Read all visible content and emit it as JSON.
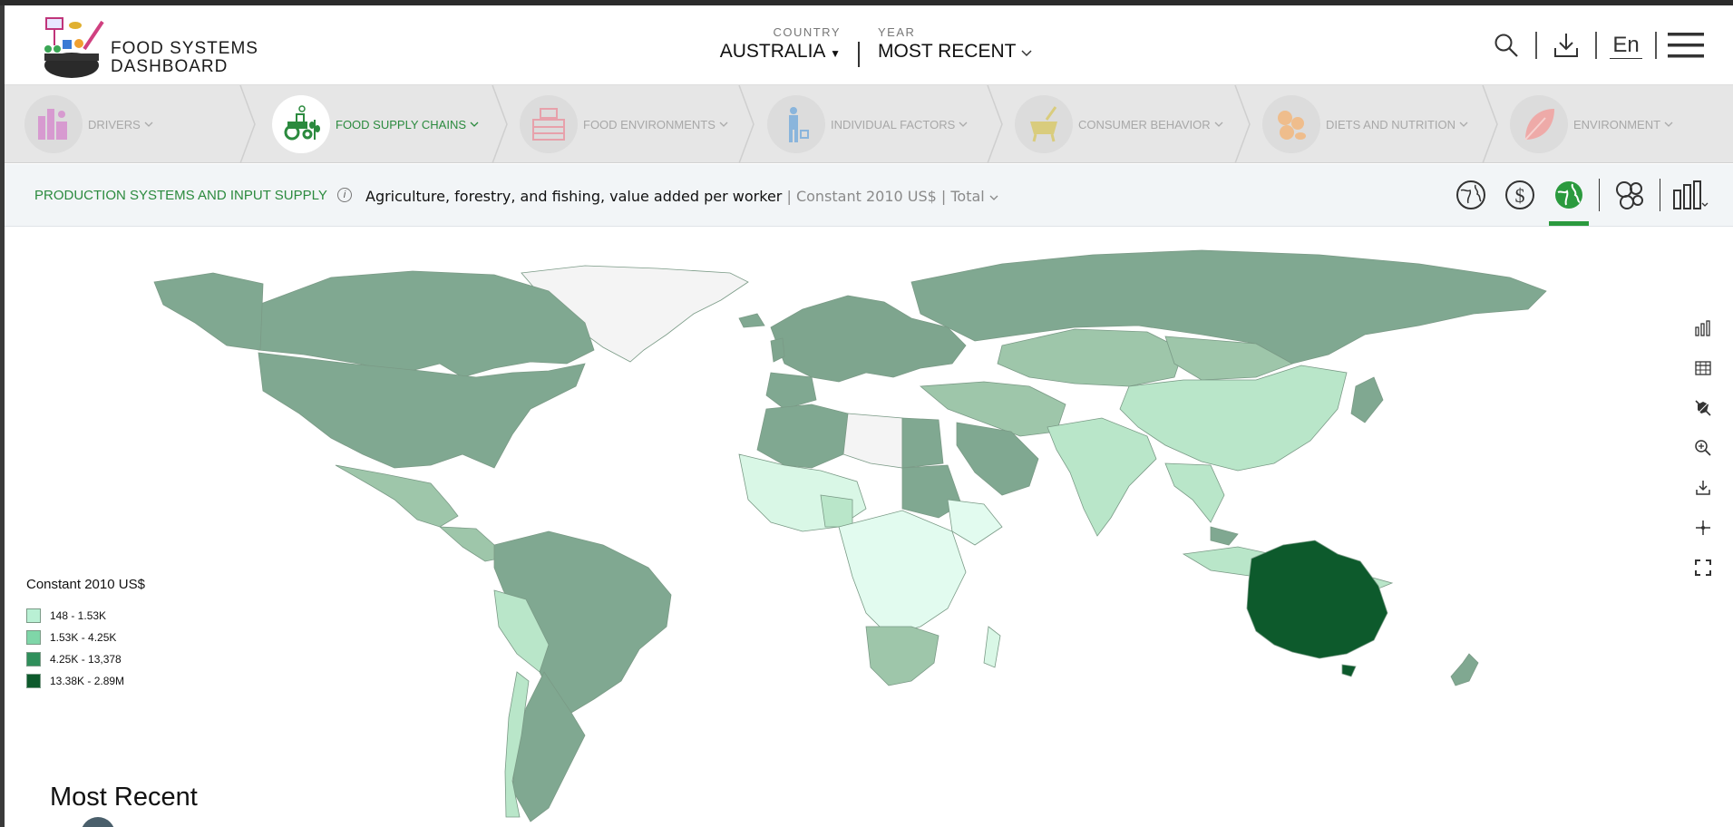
{
  "header": {
    "logo_line1": "FOOD SYSTEMS",
    "logo_line2": "DASHBOARD",
    "country_label": "COUNTRY",
    "country_value": "AUSTRALIA",
    "year_label": "YEAR",
    "year_value": "MOST RECENT",
    "language": "En",
    "icons": [
      "search-icon",
      "download-icon",
      "menu-icon"
    ]
  },
  "categories": [
    {
      "label": "DRIVERS",
      "color": "#c55bb5",
      "active": false
    },
    {
      "label": "FOOD SUPPLY CHAINS",
      "color": "#2b8a3e",
      "active": true
    },
    {
      "label": "FOOD ENVIRONMENTS",
      "color": "#d4566a",
      "active": false
    },
    {
      "label": "INDIVIDUAL FACTORS",
      "color": "#2f7cc4",
      "active": false
    },
    {
      "label": "CONSUMER BEHAVIOR",
      "color": "#b7a12a",
      "active": false
    },
    {
      "label": "DIETS AND NUTRITION",
      "color": "#e0862b",
      "active": false
    },
    {
      "label": "ENVIRONMENT",
      "color": "#e26b6b",
      "active": false
    }
  ],
  "indicator": {
    "category": "PRODUCTION SYSTEMS AND INPUT SUPPLY",
    "info_glyph": "i",
    "name": "Agriculture, forestry, and fishing, value added per worker",
    "unit": "| Constant 2010 US$ | Total",
    "view_tools": [
      "globe-icon",
      "dollar-icon",
      "map-icon",
      "bubble-icon",
      "bar-chart-icon"
    ],
    "active_view": "map-icon"
  },
  "map_tools": [
    "bar-chart-icon",
    "table-icon",
    "no-borders-icon",
    "zoom-in-icon",
    "download-icon",
    "crosshair-icon",
    "fullscreen-icon"
  ],
  "legend": {
    "title": "Constant 2010 US$",
    "items": [
      {
        "label": "148 - 1.53K",
        "color": "#b9f0d4"
      },
      {
        "label": "1.53K - 4.25K",
        "color": "#7fd6a8"
      },
      {
        "label": "4.25K - 13,378",
        "color": "#2f8f5b"
      },
      {
        "label": "13.38K - 2.89M",
        "color": "#0d5a2c"
      }
    ]
  },
  "timeline": {
    "label": "Most Recent"
  }
}
